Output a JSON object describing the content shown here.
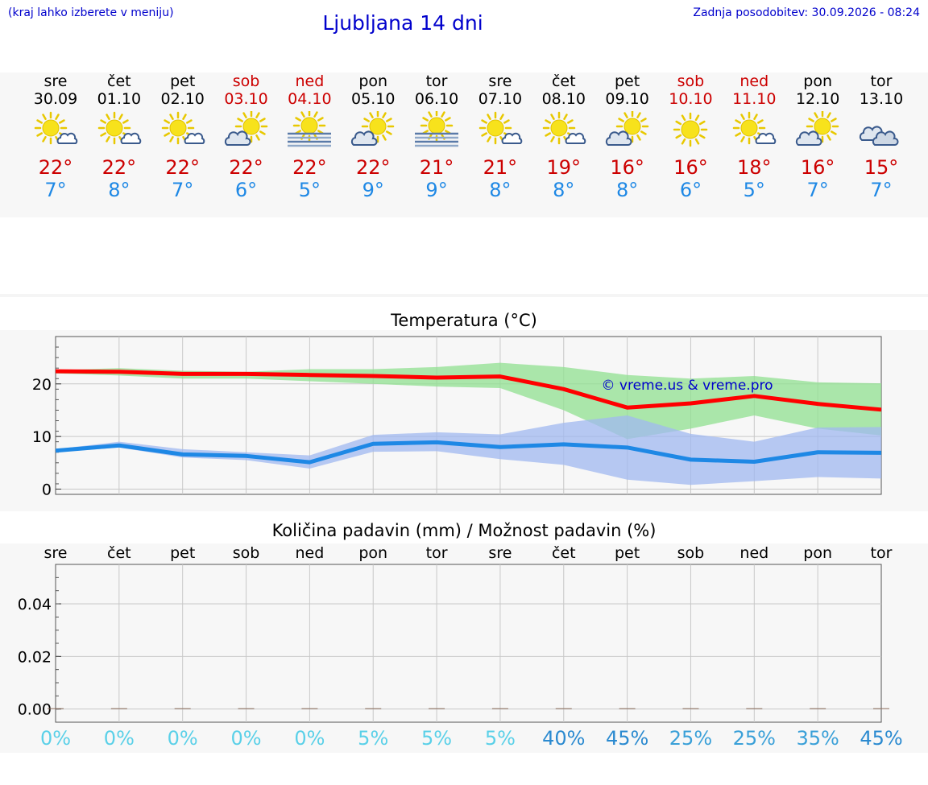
{
  "header": {
    "hint": "(kraj lahko izberete v meniju)",
    "title": "Ljubljana 14 dni",
    "updated": "Zadnja posodobitev: 30.09.2026 - 08:24"
  },
  "colors": {
    "max": "#cc0000",
    "min": "#1e88e5",
    "maxLine": "#ff0000",
    "minLine": "#1e88e5",
    "maxBand": "#90e090",
    "minBand": "#a0b8f0",
    "link": "#0000cc"
  },
  "days": [
    {
      "name": "sre",
      "date": "30.09",
      "weekend": false,
      "icon": "sun-cloud",
      "max": "22°",
      "min": "7°"
    },
    {
      "name": "čet",
      "date": "01.10",
      "weekend": false,
      "icon": "sun-cloud",
      "max": "22°",
      "min": "8°"
    },
    {
      "name": "pet",
      "date": "02.10",
      "weekend": false,
      "icon": "sun-cloud",
      "max": "22°",
      "min": "7°"
    },
    {
      "name": "sob",
      "date": "03.10",
      "weekend": true,
      "icon": "cloud-sun",
      "max": "22°",
      "min": "6°"
    },
    {
      "name": "ned",
      "date": "04.10",
      "weekend": true,
      "icon": "sun-fog",
      "max": "22°",
      "min": "5°"
    },
    {
      "name": "pon",
      "date": "05.10",
      "weekend": false,
      "icon": "cloud-sun",
      "max": "22°",
      "min": "9°"
    },
    {
      "name": "tor",
      "date": "06.10",
      "weekend": false,
      "icon": "sun-fog",
      "max": "21°",
      "min": "9°"
    },
    {
      "name": "sre",
      "date": "07.10",
      "weekend": false,
      "icon": "sun-cloud",
      "max": "21°",
      "min": "8°"
    },
    {
      "name": "čet",
      "date": "08.10",
      "weekend": false,
      "icon": "sun-cloud",
      "max": "19°",
      "min": "8°"
    },
    {
      "name": "pet",
      "date": "09.10",
      "weekend": false,
      "icon": "cloud-sun",
      "max": "16°",
      "min": "8°"
    },
    {
      "name": "sob",
      "date": "10.10",
      "weekend": true,
      "icon": "sun",
      "max": "16°",
      "min": "6°"
    },
    {
      "name": "ned",
      "date": "11.10",
      "weekend": true,
      "icon": "sun-cloud",
      "max": "18°",
      "min": "5°"
    },
    {
      "name": "pon",
      "date": "12.10",
      "weekend": false,
      "icon": "cloud-sun",
      "max": "16°",
      "min": "7°"
    },
    {
      "name": "tor",
      "date": "13.10",
      "weekend": false,
      "icon": "clouds",
      "max": "15°",
      "min": "7°"
    }
  ],
  "chart_data": [
    {
      "type": "line",
      "title": "Temperatura (°C)",
      "ylim": [
        -1,
        29
      ],
      "yticks": [
        "0",
        "10",
        "20"
      ],
      "grid": true,
      "watermark": "© vreme.us & vreme.pro",
      "x": [
        0,
        1,
        2,
        3,
        4,
        5,
        6,
        7,
        8,
        9,
        10,
        11,
        12,
        13
      ],
      "series": [
        {
          "key": "max",
          "values": [
            22.4,
            22.3,
            21.9,
            21.9,
            21.7,
            21.5,
            21.2,
            21.4,
            19.0,
            15.5,
            16.3,
            17.7,
            16.2,
            15.1
          ],
          "band_low": [
            22.0,
            21.6,
            21.0,
            21.0,
            20.5,
            20.0,
            19.5,
            19.2,
            15.0,
            9.5,
            11.5,
            14.0,
            11.5,
            10.2
          ],
          "band_high": [
            22.6,
            23.0,
            22.5,
            22.3,
            22.8,
            22.8,
            23.2,
            24.0,
            23.2,
            21.7,
            21.0,
            21.5,
            20.3,
            20.1
          ]
        },
        {
          "key": "min",
          "values": [
            7.3,
            8.3,
            6.6,
            6.3,
            5.1,
            8.6,
            8.9,
            8.0,
            8.5,
            7.9,
            5.6,
            5.2,
            7.0,
            6.9
          ],
          "band_low": [
            7.0,
            7.9,
            6.0,
            5.5,
            3.9,
            7.1,
            7.2,
            5.7,
            4.6,
            1.8,
            0.8,
            1.5,
            2.3,
            2.0
          ],
          "band_high": [
            7.6,
            9.0,
            7.6,
            7.0,
            6.4,
            10.3,
            10.8,
            10.4,
            12.6,
            14.0,
            10.5,
            9.0,
            11.7,
            11.8
          ]
        }
      ]
    },
    {
      "type": "bar",
      "title": "Količina padavin (mm) / Možnost padavin (%)",
      "categories": [
        "sre",
        "čet",
        "pet",
        "sob",
        "ned",
        "pon",
        "tor",
        "sre",
        "čet",
        "pet",
        "sob",
        "ned",
        "pon",
        "tor"
      ],
      "values": [
        0,
        0,
        0,
        0,
        0,
        0,
        0,
        0,
        0,
        0,
        0,
        0,
        0,
        0
      ],
      "ylim": [
        -0.005,
        0.055
      ],
      "yticks": [
        "0.00",
        "0.02",
        "0.04"
      ],
      "probability_labels": [
        "0%",
        "0%",
        "0%",
        "0%",
        "0%",
        "5%",
        "5%",
        "5%",
        "40%",
        "45%",
        "25%",
        "25%",
        "35%",
        "45%"
      ],
      "probability": [
        0,
        0,
        0,
        0,
        0,
        5,
        5,
        5,
        40,
        45,
        25,
        25,
        35,
        45
      ]
    }
  ]
}
